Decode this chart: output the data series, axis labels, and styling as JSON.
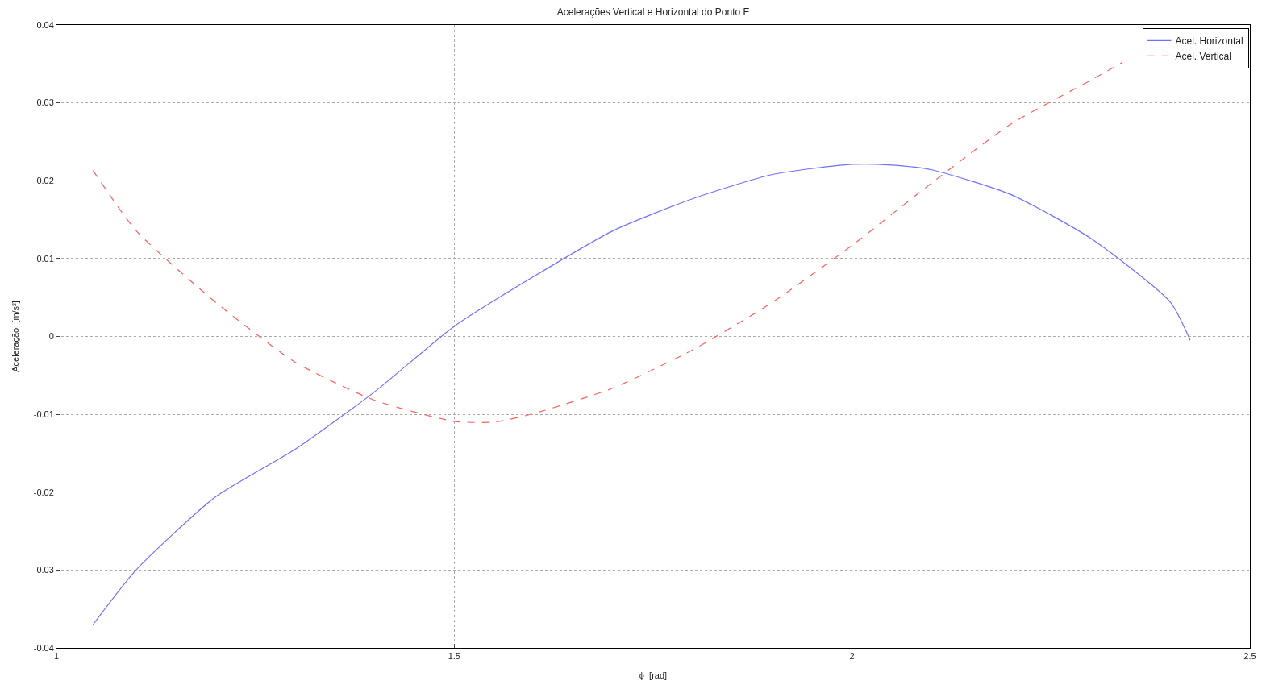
{
  "chart_data": {
    "type": "line",
    "title": "Acelerações Vertical e Horizontal do Ponto E",
    "xlabel": "ϕ  [rad]",
    "ylabel": "Aceleração  [m/s²]",
    "xlim": [
      1,
      2.5
    ],
    "xticks": [
      1,
      1.5,
      2,
      2.5
    ],
    "ylim": [
      -0.04,
      0.04
    ],
    "yticks": [
      -0.04,
      -0.03,
      -0.02,
      -0.01,
      0,
      0.01,
      0.02,
      0.03,
      0.04
    ],
    "grid": true,
    "legend": "top right",
    "marker": "none",
    "series": [
      {
        "name": "Acel. Horizontal",
        "color": "#7070ff",
        "line_style": "solid",
        "x": [
          1.046,
          1.1,
          1.2,
          1.3,
          1.4,
          1.5,
          1.6,
          1.7,
          1.8,
          1.9,
          2.0,
          2.05,
          2.1,
          2.2,
          2.3,
          2.4,
          2.425
        ],
        "values": [
          -0.037,
          -0.03,
          -0.0206,
          -0.0145,
          -0.0071,
          0.0013,
          0.0077,
          0.0136,
          0.0177,
          0.0208,
          0.0221,
          0.022,
          0.0214,
          0.0182,
          0.0126,
          0.0044,
          -0.0005
        ]
      },
      {
        "name": "Acel. Vertical",
        "color": "#ff6060",
        "line_style": "dashed",
        "x": [
          1.046,
          1.1,
          1.2,
          1.3,
          1.4,
          1.5,
          1.55,
          1.6,
          1.7,
          1.8,
          1.9,
          2.0,
          2.1,
          2.2,
          2.3,
          2.34
        ],
        "values": [
          0.0213,
          0.0136,
          0.0044,
          -0.0033,
          -0.0082,
          -0.0109,
          -0.011,
          -0.0099,
          -0.0066,
          -0.0017,
          0.0044,
          0.0117,
          0.0197,
          0.0273,
          0.0329,
          0.0352
        ]
      }
    ]
  }
}
